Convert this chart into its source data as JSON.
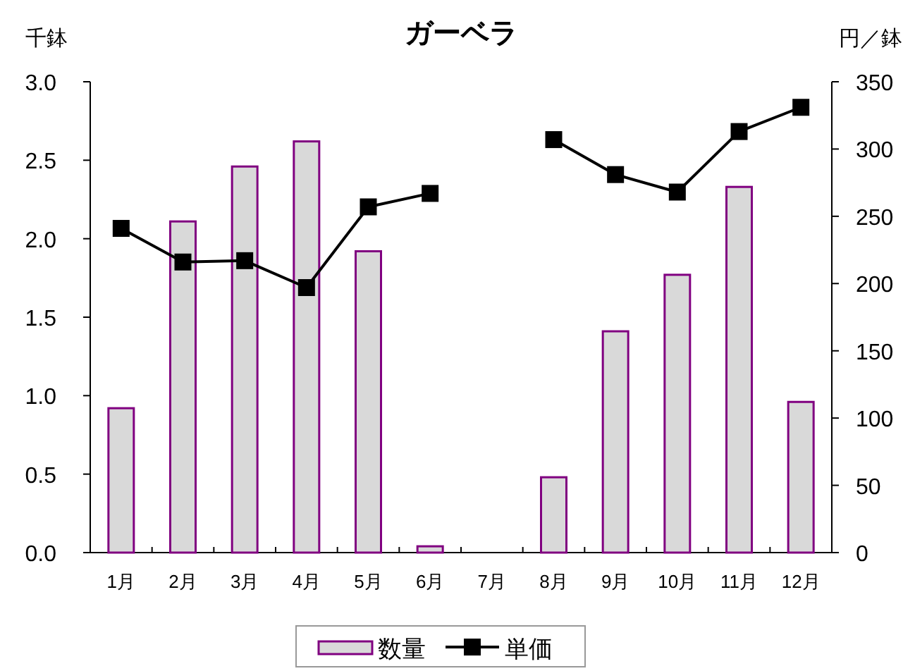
{
  "chart_data": {
    "type": "bar",
    "title": "ガーベラ",
    "ylabel": "千鉢",
    "y2label": "円／鉢",
    "legend": "bottom",
    "categories": [
      "1月",
      "2月",
      "3月",
      "4月",
      "5月",
      "6月",
      "7月",
      "8月",
      "9月",
      "10月",
      "11月",
      "12月"
    ],
    "series": [
      {
        "name": "数量",
        "color": "#d9d9d9",
        "values": [
          0.92,
          2.11,
          2.46,
          2.62,
          1.92,
          0.04,
          null,
          0.48,
          1.41,
          1.77,
          2.33,
          0.96
        ]
      },
      {
        "name": "単価",
        "type": "line",
        "axis": "y2",
        "color": "#000000",
        "marker": "square",
        "values": [
          241,
          216,
          217,
          197,
          257,
          267,
          null,
          307,
          281,
          268,
          313,
          331
        ]
      }
    ],
    "ylim": [
      0,
      3
    ],
    "yticks": [
      {
        "value": 0,
        "label": "0.0"
      },
      {
        "value": 0.5,
        "label": "0.5"
      },
      {
        "value": 1,
        "label": "1.0"
      },
      {
        "value": 1.5,
        "label": "1.5"
      },
      {
        "value": 2,
        "label": "2.0"
      },
      {
        "value": 2.5,
        "label": "2.5"
      },
      {
        "value": 3,
        "label": "3.0"
      }
    ],
    "y2lim": [
      0,
      350
    ],
    "y2ticks": [
      0,
      50,
      100,
      150,
      200,
      250,
      300,
      350
    ]
  }
}
